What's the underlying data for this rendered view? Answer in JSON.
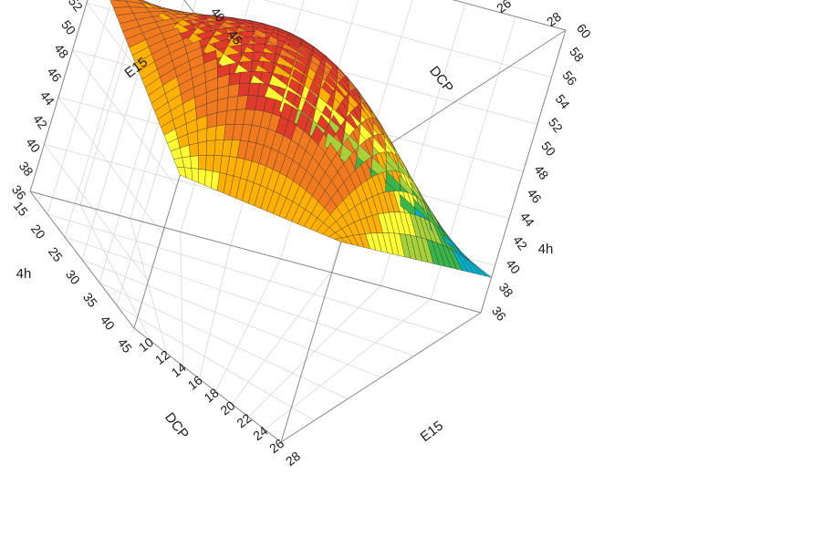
{
  "chart_data": {
    "type": "surface",
    "title": "",
    "response_label": "4h",
    "response_min_shown": 36,
    "response_max_shown": 60,
    "axes": {
      "x": {
        "label": "E15",
        "range": [
          10,
          28
        ],
        "ticks": [
          "10",
          "12",
          "14",
          "16",
          "18",
          "20",
          "22",
          "24",
          "26",
          "28"
        ]
      },
      "y": {
        "label": "DCP",
        "range": [
          15,
          45
        ],
        "ticks": [
          "15",
          "20",
          "25",
          "30",
          "35",
          "40",
          "45"
        ]
      },
      "z": {
        "label": "4h",
        "range": [
          36,
          60
        ],
        "ticks": [
          "36",
          "38",
          "40",
          "42",
          "44",
          "46",
          "48",
          "50",
          "52",
          "54",
          "56",
          "58",
          "60"
        ]
      }
    },
    "corner_values": [
      {
        "E15": 10,
        "DCP": 45,
        "4h": 49
      },
      {
        "E15": 10,
        "DCP": 15,
        "4h": 55
      },
      {
        "E15": 28,
        "DCP": 45,
        "4h": 53
      },
      {
        "E15": 28,
        "DCP": 15,
        "4h": 39
      }
    ],
    "peak": {
      "E15": 18,
      "DCP": 32,
      "4h": 59
    },
    "color_bands": [
      "#00b0c8",
      "#3ab54a",
      "#a6d13a",
      "#ffff33",
      "#ffb000",
      "#f27a1e",
      "#e03a2a"
    ],
    "grid": true
  }
}
